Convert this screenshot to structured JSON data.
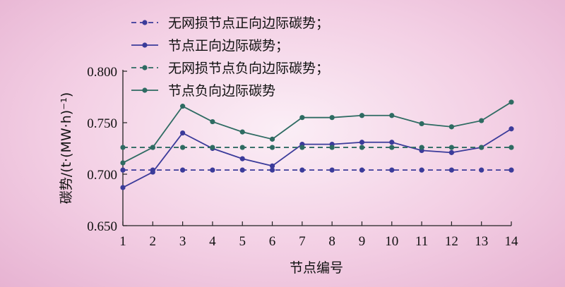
{
  "chart_data": {
    "type": "line",
    "title": "",
    "xlabel": "节点编号",
    "ylabel": "碳势/(t·(MW·h)⁻¹)",
    "x": [
      1,
      2,
      3,
      4,
      5,
      6,
      7,
      8,
      9,
      10,
      11,
      12,
      13,
      14
    ],
    "xlim": [
      1,
      14
    ],
    "ylim": [
      0.65,
      0.8
    ],
    "yticks": [
      "0.650",
      "0.700",
      "0.750",
      "0.800"
    ],
    "grid": false,
    "legend_position": "top-left",
    "series": [
      {
        "name": "无网损节点正向边际碳势；",
        "style": "dashed",
        "color": "#3b3b9a",
        "values": [
          0.704,
          0.704,
          0.704,
          0.704,
          0.704,
          0.704,
          0.704,
          0.704,
          0.704,
          0.704,
          0.704,
          0.704,
          0.704,
          0.704
        ]
      },
      {
        "name": "节点正向边际碳势；",
        "style": "solid",
        "color": "#3b3b9a",
        "values": [
          0.687,
          0.702,
          0.74,
          0.725,
          0.715,
          0.708,
          0.729,
          0.729,
          0.731,
          0.731,
          0.723,
          0.721,
          0.726,
          0.744
        ]
      },
      {
        "name": "无网损节点负向边际碳势；",
        "style": "dashed",
        "color": "#2e6b62",
        "values": [
          0.726,
          0.726,
          0.726,
          0.726,
          0.726,
          0.726,
          0.726,
          0.726,
          0.726,
          0.726,
          0.726,
          0.726,
          0.726,
          0.726
        ]
      },
      {
        "name": "节点负向边际碳势",
        "style": "solid",
        "color": "#2e6b62",
        "values": [
          0.711,
          0.726,
          0.766,
          0.751,
          0.741,
          0.734,
          0.755,
          0.755,
          0.757,
          0.757,
          0.749,
          0.746,
          0.752,
          0.77
        ]
      }
    ]
  }
}
